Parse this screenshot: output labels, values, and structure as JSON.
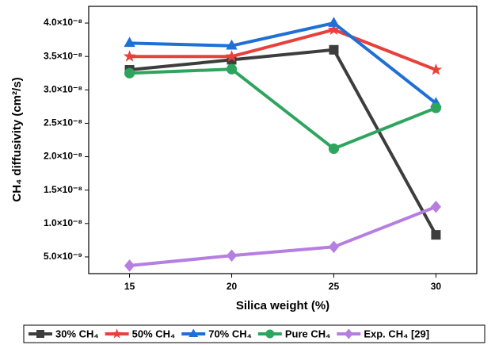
{
  "chart_data": {
    "type": "line",
    "xlabel": "Silica weight (%)",
    "ylabel": "CH₄ diffusivity (cm²/s)",
    "x": [
      15,
      20,
      25,
      30
    ],
    "xlim": [
      13,
      32
    ],
    "xticks": [
      15,
      20,
      25,
      30
    ],
    "ylim": [
      2.5e-09,
      4.25e-08
    ],
    "yticks": [
      {
        "value": 5e-09,
        "label": "5.0×10⁻⁹"
      },
      {
        "value": 1e-08,
        "label": "1.0×10⁻⁸"
      },
      {
        "value": 1.5e-08,
        "label": "1.5×10⁻⁸"
      },
      {
        "value": 2e-08,
        "label": "2.0×10⁻⁸"
      },
      {
        "value": 2.5e-08,
        "label": "2.5×10⁻⁸"
      },
      {
        "value": 3e-08,
        "label": "3.0×10⁻⁸"
      },
      {
        "value": 3.5e-08,
        "label": "3.5×10⁻⁸"
      },
      {
        "value": 4e-08,
        "label": "4.0×10⁻⁸"
      }
    ],
    "grid": false,
    "legend": "bottom",
    "series": [
      {
        "name": "30% CH₄",
        "color": "#3d3d3d",
        "marker": "square",
        "values": [
          3.3e-08,
          3.45e-08,
          3.6e-08,
          8.3e-09
        ]
      },
      {
        "name": "50% CH₄",
        "color": "#e8413c",
        "marker": "star",
        "values": [
          3.5e-08,
          3.5e-08,
          3.9e-08,
          3.3e-08
        ]
      },
      {
        "name": "70% CH₄",
        "color": "#1f6fd6",
        "marker": "triangle",
        "values": [
          3.7e-08,
          3.66e-08,
          4e-08,
          2.8e-08
        ]
      },
      {
        "name": "Pure CH₄",
        "color": "#2ea55f",
        "marker": "circle",
        "values": [
          3.25e-08,
          3.31e-08,
          2.12e-08,
          2.73e-08
        ]
      },
      {
        "name": "Exp. CH₄ [29]",
        "color": "#b57ee0",
        "marker": "diamond",
        "values": [
          3.7e-09,
          5.2e-09,
          6.5e-09,
          1.25e-08
        ]
      }
    ]
  }
}
